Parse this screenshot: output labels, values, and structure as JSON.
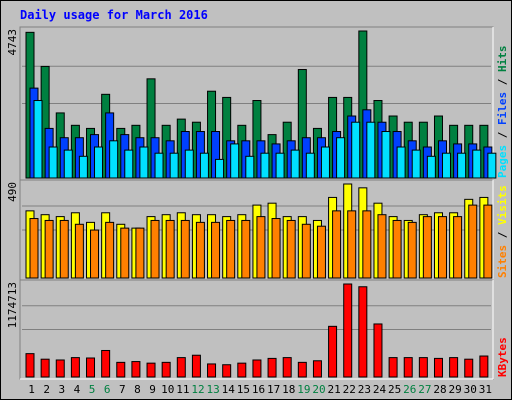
{
  "chart_data": {
    "type": "bar",
    "title": "Daily usage for March 2016",
    "days": [
      "1",
      "2",
      "3",
      "4",
      "5",
      "6",
      "7",
      "8",
      "9",
      "10",
      "11",
      "12",
      "13",
      "14",
      "15",
      "16",
      "17",
      "18",
      "19",
      "20",
      "21",
      "22",
      "23",
      "24",
      "25",
      "26",
      "27",
      "28",
      "29",
      "30",
      "31"
    ],
    "weekend_days": [
      "5",
      "6",
      "12",
      "13",
      "19",
      "20",
      "26",
      "27"
    ],
    "panels": [
      {
        "id": "top",
        "ymax_label": "4743",
        "ymax": 4743,
        "legend": [
          {
            "label": "Pages",
            "color": "#00e0ff"
          },
          {
            "label": "Files",
            "color": "#0040ff"
          },
          {
            "label": "Hits",
            "color": "#008040"
          }
        ],
        "series": [
          {
            "name": "Hits",
            "color": "#008040",
            "offset": 0,
            "values": [
              4700,
              3600,
              2100,
              1700,
              1600,
              2700,
              1600,
              1700,
              3200,
              1700,
              1900,
              1800,
              2800,
              2600,
              1700,
              2500,
              1400,
              1800,
              3500,
              1600,
              2600,
              2600,
              4743,
              2500,
              2000,
              1800,
              1800,
              2000,
              1700,
              1700,
              1700
            ]
          },
          {
            "name": "Files",
            "color": "#0040ff",
            "offset": 4,
            "values": [
              2900,
              1600,
              1300,
              1300,
              1400,
              2100,
              1400,
              1300,
              1300,
              1200,
              1500,
              1500,
              1500,
              1200,
              1200,
              1200,
              1100,
              1200,
              1300,
              1300,
              1500,
              2000,
              2200,
              1800,
              1500,
              1200,
              1000,
              1200,
              1100,
              1100,
              1000
            ]
          },
          {
            "name": "Pages",
            "color": "#00e0ff",
            "offset": 8,
            "values": [
              2500,
              1000,
              900,
              700,
              1000,
              1200,
              900,
              1000,
              800,
              800,
              900,
              800,
              600,
              1100,
              700,
              800,
              800,
              900,
              800,
              1000,
              1300,
              1800,
              1800,
              1500,
              1000,
              900,
              700,
              800,
              800,
              900,
              800
            ]
          }
        ]
      },
      {
        "id": "middle",
        "ymax_label": "490",
        "ymax": 490,
        "legend": [
          {
            "label": "Sites",
            "color": "#ff8000"
          },
          {
            "label": "Visits",
            "color": "#ffff00"
          }
        ],
        "series": [
          {
            "name": "Visits",
            "color": "#ffff00",
            "offset": 0,
            "values": [
              350,
              330,
              320,
              340,
              290,
              340,
              280,
              260,
              320,
              330,
              340,
              330,
              330,
              320,
              330,
              380,
              390,
              320,
              320,
              300,
              420,
              490,
              470,
              390,
              320,
              300,
              330,
              340,
              340,
              410,
              420
            ]
          },
          {
            "name": "Sites",
            "color": "#ff8000",
            "offset": 4,
            "values": [
              310,
              300,
              300,
              280,
              250,
              290,
              260,
              260,
              300,
              300,
              300,
              290,
              290,
              300,
              300,
              320,
              310,
              300,
              280,
              270,
              350,
              350,
              350,
              330,
              300,
              290,
              320,
              320,
              320,
              380,
              380
            ]
          }
        ]
      },
      {
        "id": "bottom",
        "ymax_label": "1174713",
        "ymax": 1174713,
        "legend": [
          {
            "label": "KBytes",
            "color": "#ff0000"
          }
        ],
        "series": [
          {
            "name": "KBytes",
            "color": "#ff0000",
            "offset": 0,
            "values": [
              295000,
              225000,
              215000,
              245000,
              240000,
              335000,
              185000,
              195000,
              175000,
              185000,
              245000,
              275000,
              165000,
              155000,
              175000,
              215000,
              235000,
              245000,
              185000,
              205000,
              640000,
              1174713,
              1140000,
              670000,
              245000,
              245000,
              245000,
              235000,
              245000,
              225000,
              265000
            ]
          }
        ]
      }
    ]
  }
}
